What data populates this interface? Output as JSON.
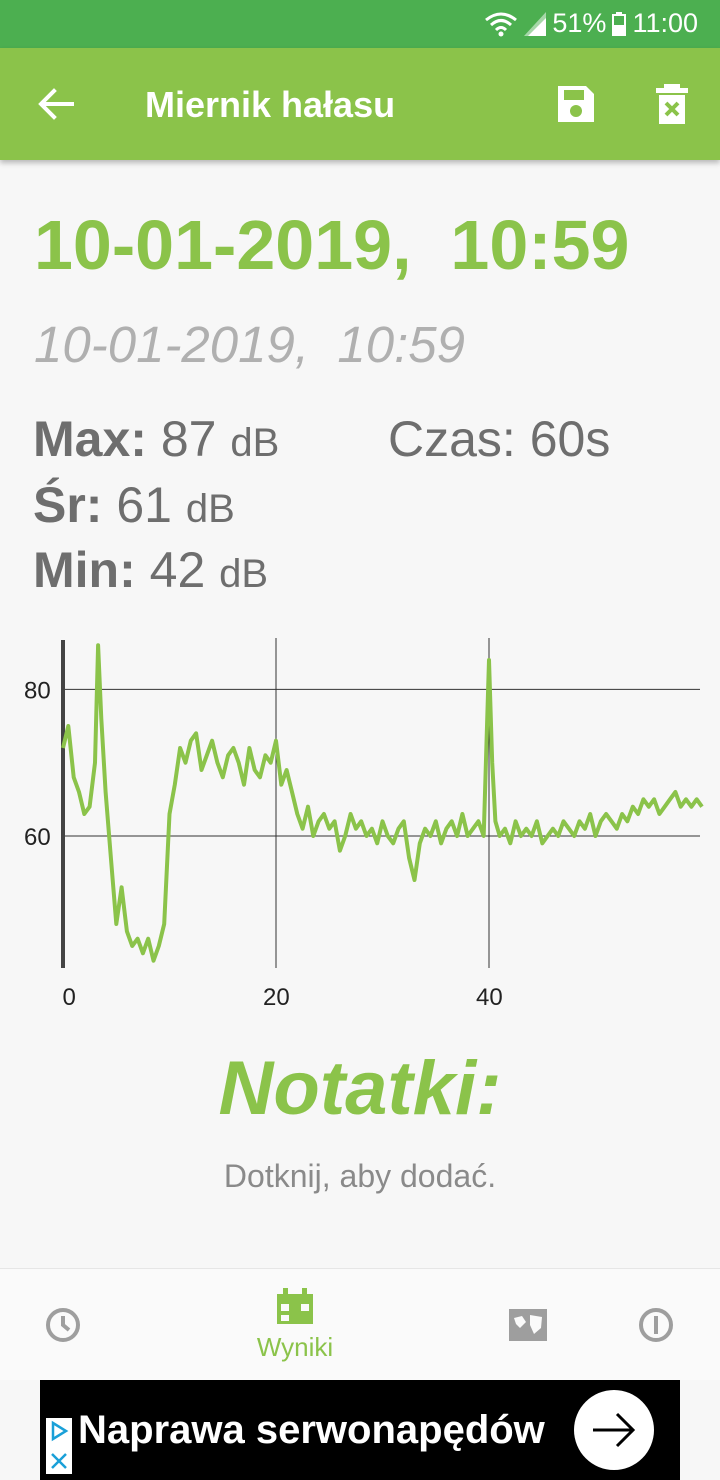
{
  "status_bar": {
    "battery": "51%",
    "time": "11:00"
  },
  "app_bar": {
    "title": "Miernik hałasu",
    "back_icon": "arrow-back-icon",
    "save_icon": "save-icon",
    "delete_icon": "delete-icon"
  },
  "measurement": {
    "date_main": "10-01-2019,  10:59",
    "date_sub": "10-01-2019,  10:59",
    "max_label": "Max:",
    "max_value": "87",
    "max_unit": "dB",
    "avg_label": "Śr:",
    "avg_value": "61",
    "avg_unit": "dB",
    "min_label": "Min:",
    "min_value": "42",
    "min_unit": "dB",
    "time_label": "Czas:",
    "time_value": "60s"
  },
  "chart_data": {
    "type": "line",
    "xlabel": "",
    "ylabel": "",
    "x_ticks": [
      "0",
      "20",
      "40"
    ],
    "y_ticks": [
      "80",
      "60"
    ],
    "xlim": [
      0,
      60
    ],
    "ylim": [
      42,
      87
    ],
    "grid": true,
    "line_color": "#8bc34a",
    "series": [
      {
        "x": [
          0,
          0.5,
          1,
          1.5,
          2,
          2.5,
          3,
          3.3,
          3.6,
          4,
          4.5,
          5,
          5.5,
          6,
          6.5,
          7,
          7.5,
          8,
          8.5,
          9,
          9.5,
          10,
          10.5,
          11,
          11.5,
          12,
          12.5,
          13,
          13.5,
          14,
          14.5,
          15,
          15.5,
          16,
          16.5,
          17,
          17.5,
          18,
          18.5,
          19,
          19.5,
          20,
          20.5,
          21,
          21.5,
          22,
          22.5,
          23,
          23.5,
          24,
          24.5,
          25,
          25.5,
          26,
          26.5,
          27,
          27.5,
          28,
          28.5,
          29,
          29.5,
          30,
          30.5,
          31,
          31.5,
          32,
          32.5,
          33,
          33.5,
          34,
          34.5,
          35,
          35.5,
          36,
          36.5,
          37,
          37.5,
          38,
          38.5,
          39,
          39.5,
          40,
          40.3,
          40.6,
          41,
          41.5,
          42,
          42.5,
          43,
          43.5,
          44,
          44.5,
          45,
          45.5,
          46,
          46.5,
          47,
          47.5,
          48,
          48.5,
          49,
          49.5,
          50,
          50.5,
          51,
          51.5,
          52,
          52.5,
          53,
          53.5,
          54,
          54.5,
          55,
          55.5,
          56,
          56.5,
          57,
          57.5,
          58,
          58.5,
          59,
          59.5,
          60
        ],
        "values": [
          72,
          75,
          68,
          66,
          63,
          64,
          70,
          86,
          76,
          66,
          57,
          48,
          53,
          47,
          45,
          46,
          44,
          46,
          43,
          45,
          48,
          63,
          67,
          72,
          70,
          73,
          74,
          69,
          71,
          73,
          70,
          68,
          71,
          72,
          70,
          67,
          72,
          69,
          68,
          71,
          70,
          73,
          67,
          69,
          66,
          63,
          61,
          64,
          60,
          62,
          63,
          61,
          62,
          58,
          60,
          63,
          61,
          62,
          60,
          61,
          59,
          62,
          60,
          59,
          61,
          62,
          57,
          54,
          59,
          61,
          60,
          62,
          59,
          61,
          62,
          60,
          63,
          60,
          61,
          62,
          60,
          84,
          70,
          62,
          60,
          61,
          59,
          62,
          60,
          61,
          60,
          62,
          59,
          60,
          61,
          60,
          62,
          61,
          60,
          62,
          61,
          63,
          60,
          62,
          63,
          62,
          61,
          63,
          62,
          64,
          63,
          65,
          64,
          65,
          63,
          64,
          65,
          66,
          64,
          65,
          64,
          65,
          64
        ]
      }
    ]
  },
  "notes": {
    "title": "Notatki:",
    "hint": "Dotknij, aby dodać."
  },
  "bottom_nav": {
    "history_icon": "clock-icon",
    "results_label": "Wyniki",
    "results_icon": "calendar-icon",
    "map_icon": "map-icon",
    "info_icon": "info-icon"
  },
  "ad": {
    "text": "Naprawa serwonapędów",
    "arrow_icon": "arrow-right-icon"
  }
}
